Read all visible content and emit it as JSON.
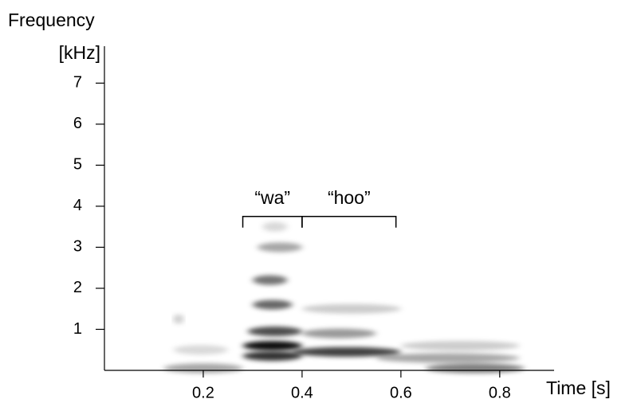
{
  "chart_data": {
    "type": "spectrogram",
    "y_label_lines": [
      "Frequency",
      "[kHz]"
    ],
    "x_label": "Time [s]",
    "xlim": [
      0,
      0.91
    ],
    "ylim": [
      0,
      7.9
    ],
    "xticks": [
      0.2,
      0.4,
      0.6,
      0.8
    ],
    "yticks": [
      1,
      2,
      3,
      4,
      5,
      6,
      7
    ],
    "color": "#000000",
    "bands": [
      {
        "start": 0.28,
        "end": 0.4,
        "frequency": 0.6,
        "intensity": 0.95
      },
      {
        "start": 0.28,
        "end": 0.4,
        "frequency": 0.35,
        "intensity": 0.8
      },
      {
        "start": 0.38,
        "end": 0.6,
        "frequency": 0.45,
        "intensity": 0.75
      },
      {
        "start": 0.29,
        "end": 0.4,
        "frequency": 0.95,
        "intensity": 0.7
      },
      {
        "start": 0.3,
        "end": 0.38,
        "frequency": 1.6,
        "intensity": 0.6
      },
      {
        "start": 0.3,
        "end": 0.37,
        "frequency": 2.2,
        "intensity": 0.55
      },
      {
        "start": 0.31,
        "end": 0.4,
        "frequency": 3.0,
        "intensity": 0.35
      },
      {
        "start": 0.32,
        "end": 0.37,
        "frequency": 3.5,
        "intensity": 0.15
      },
      {
        "start": 0.4,
        "end": 0.55,
        "frequency": 0.9,
        "intensity": 0.4
      },
      {
        "start": 0.4,
        "end": 0.6,
        "frequency": 1.5,
        "intensity": 0.2
      },
      {
        "start": 0.55,
        "end": 0.84,
        "frequency": 0.3,
        "intensity": 0.35
      },
      {
        "start": 0.6,
        "end": 0.84,
        "frequency": 0.6,
        "intensity": 0.2
      },
      {
        "start": 0.12,
        "end": 0.28,
        "frequency": 0.05,
        "intensity": 0.35
      },
      {
        "start": 0.14,
        "end": 0.25,
        "frequency": 0.5,
        "intensity": 0.15
      },
      {
        "start": 0.65,
        "end": 0.85,
        "frequency": 0.05,
        "intensity": 0.5
      },
      {
        "start": 0.14,
        "end": 0.16,
        "frequency": 1.25,
        "intensity": 0.2
      }
    ],
    "annotations": [
      {
        "text": "“wa”",
        "start": 0.28,
        "end": 0.4,
        "frequency": 3.75
      },
      {
        "text": "“hoo”",
        "start": 0.4,
        "end": 0.59,
        "frequency": 3.75
      }
    ]
  }
}
